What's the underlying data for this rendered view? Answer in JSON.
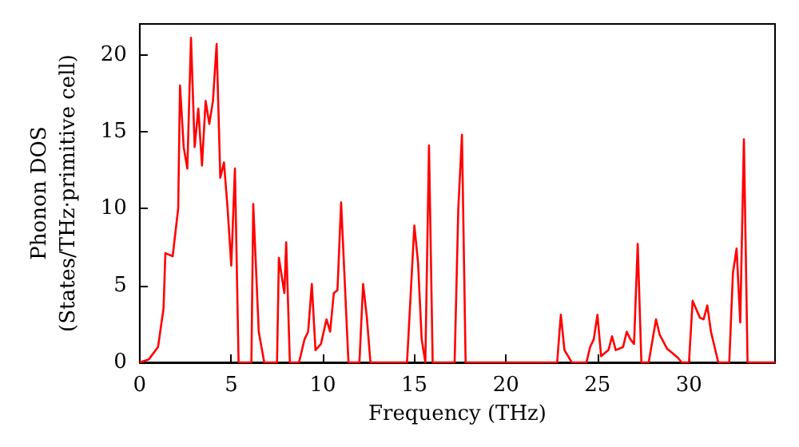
{
  "chart_data": {
    "type": "line",
    "xlabel": "Frequency (THz)",
    "ylabel": "Phonon DOS\n(States/THz·primitive cell)",
    "xlim": [
      0,
      34.7
    ],
    "ylim": [
      0,
      22
    ],
    "xticks": [
      0,
      5,
      10,
      15,
      20,
      25,
      30
    ],
    "yticks": [
      0,
      5,
      10,
      15,
      20
    ],
    "grid": false,
    "marker": "none",
    "line_style": "solid",
    "series": [
      {
        "color": "#ff0000",
        "x": [
          0,
          0.5,
          1,
          1.3,
          1.4,
          1.8,
          2.1,
          2.2,
          2.4,
          2.6,
          2.8,
          3.0,
          3.2,
          3.4,
          3.6,
          3.8,
          4.0,
          4.2,
          4.4,
          4.6,
          4.8,
          5.0,
          5.2,
          5.4,
          6.1,
          6.2,
          6.5,
          6.8,
          7.5,
          7.6,
          7.9,
          8.0,
          8.2,
          8.7,
          9.0,
          9.2,
          9.4,
          9.6,
          9.9,
          10.2,
          10.4,
          10.6,
          10.8,
          11.0,
          11.4,
          12.0,
          12.2,
          12.4,
          12.6,
          14.6,
          15.0,
          15.2,
          15.4,
          15.6,
          15.8,
          16.0,
          17.2,
          17.4,
          17.6,
          17.8,
          22.8,
          23.0,
          23.2,
          23.6,
          24.4,
          24.6,
          24.8,
          25.0,
          25.2,
          25.6,
          25.8,
          26.0,
          26.4,
          26.6,
          26.8,
          27.0,
          27.2,
          27.4,
          27.8,
          28.2,
          28.4,
          28.8,
          29.4,
          29.6,
          30.0,
          30.2,
          30.6,
          30.8,
          31.0,
          31.2,
          31.6,
          32.2,
          32.4,
          32.6,
          32.8,
          33.0,
          33.2,
          34.7
        ],
        "values": [
          0,
          0.2,
          1,
          3.5,
          7.1,
          6.9,
          10,
          18,
          14,
          12.6,
          21.1,
          14,
          16.5,
          12.8,
          17,
          15.5,
          17,
          20.7,
          12,
          13,
          10,
          6.3,
          12.6,
          0,
          0,
          10.3,
          2,
          0,
          0,
          6.8,
          4.5,
          7.8,
          0,
          0,
          1.5,
          2,
          5.1,
          0.8,
          1.2,
          2.8,
          2,
          4.5,
          4.7,
          10.4,
          0,
          0,
          5.1,
          3,
          0,
          0,
          8.9,
          6.5,
          1.5,
          0,
          14.1,
          0,
          0,
          10,
          14.8,
          0,
          0,
          3.1,
          0.8,
          0,
          0,
          1,
          1.5,
          3.1,
          0.4,
          0.8,
          1.7,
          0.8,
          1,
          2,
          1.5,
          1.2,
          7.7,
          0,
          0,
          2.8,
          1.8,
          0.9,
          0.3,
          0,
          0,
          4,
          2.9,
          2.8,
          3.7,
          2,
          0,
          0,
          5.8,
          7.4,
          2.6,
          14.5,
          0,
          0
        ]
      }
    ]
  }
}
